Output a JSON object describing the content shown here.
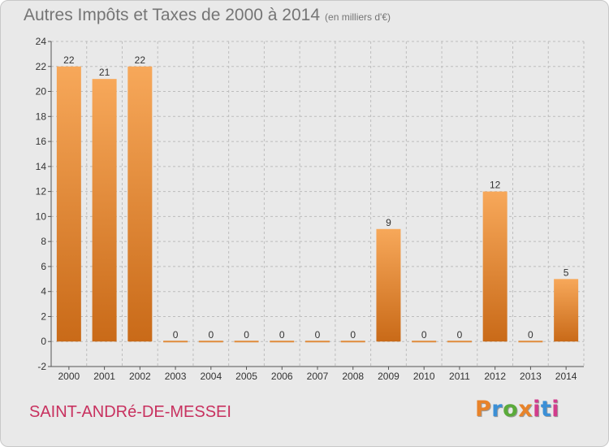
{
  "chart_data": {
    "type": "bar",
    "title": "Autres Impôts et Taxes de 2000 à 2014",
    "subtitle": "(en milliers d'€)",
    "categories": [
      "2000",
      "2001",
      "2002",
      "2003",
      "2004",
      "2005",
      "2006",
      "2007",
      "2008",
      "2009",
      "2010",
      "2011",
      "2012",
      "2013",
      "2014"
    ],
    "values": [
      22,
      21,
      22,
      0,
      0,
      0,
      0,
      0,
      0,
      9,
      0,
      0,
      12,
      0,
      5
    ],
    "ylim": [
      -2,
      24
    ],
    "yticks": [
      -2,
      0,
      2,
      4,
      6,
      8,
      10,
      12,
      14,
      16,
      18,
      20,
      22,
      24
    ],
    "grid": "horizontal dashed",
    "colors": {
      "bar_light": "#f7a85a",
      "bar_dark": "#c96a18",
      "zero_line": "#e08a3a"
    }
  },
  "footer": {
    "commune": "SAINT-ANDRé-DE-MESSEI",
    "logo_text": "Proxiti",
    "logo_colors": [
      "#e8832a",
      "#3b8fd6",
      "#5aaa3a",
      "#e8832a",
      "#d23c8c",
      "#3b8fd6",
      "#d23c8c"
    ]
  }
}
